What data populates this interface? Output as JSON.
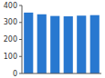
{
  "chart_data": {
    "type": "bar",
    "categories": [
      null,
      null,
      null,
      null,
      null,
      null
    ],
    "values": [
      358,
      348,
      338,
      336,
      340,
      343
    ],
    "color": "#2878d0",
    "ylim": [
      0,
      400
    ],
    "yticks": [
      0,
      100,
      200,
      300,
      400
    ],
    "tick_labels": "y"
  }
}
